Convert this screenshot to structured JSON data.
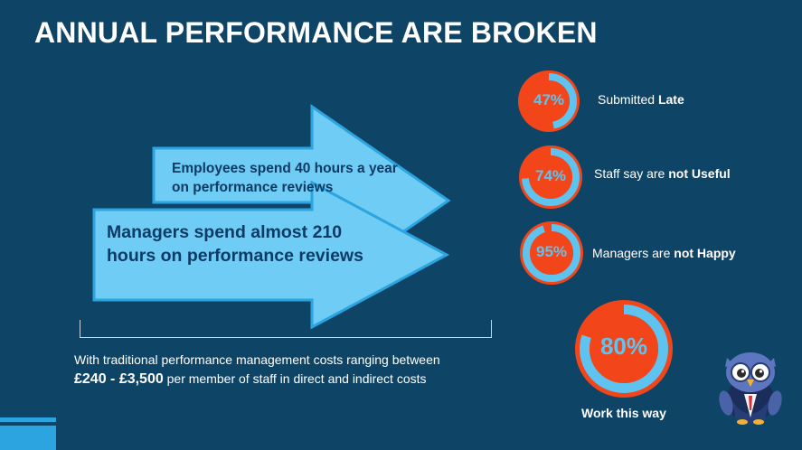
{
  "title": "ANNUAL PERFORMANCE ARE BROKEN",
  "arrows": {
    "employees_text": "Employees spend 40 hours a year on performance reviews",
    "managers_text": "Managers spend almost 210 hours on performance reviews"
  },
  "costs": {
    "line1": "With traditional performance management costs ranging between",
    "range": "£240 - £3,500",
    "line2_rest": " per member of staff in direct and indirect costs"
  },
  "stats": [
    {
      "percent_label": "47%",
      "value": 47,
      "text_plain": "Submitted ",
      "text_bold": "Late"
    },
    {
      "percent_label": "74%",
      "value": 74,
      "text_plain": "Staff say are ",
      "text_bold": "not Useful"
    },
    {
      "percent_label": "95%",
      "value": 95,
      "text_plain": "Managers are ",
      "text_bold": "not Happy"
    }
  ],
  "big_stat": {
    "percent_label": "80%",
    "value": 80,
    "caption": "Work this way"
  },
  "colors": {
    "background": "#0e4566",
    "arrow_fill": "#6fccf5",
    "arrow_border": "#2ba4e0",
    "ring_red": "#f2461a",
    "ring_blue": "#5ec4ef",
    "text_dark": "#0d3b66"
  },
  "icons": {
    "mascot": "owl-mascot-icon"
  }
}
